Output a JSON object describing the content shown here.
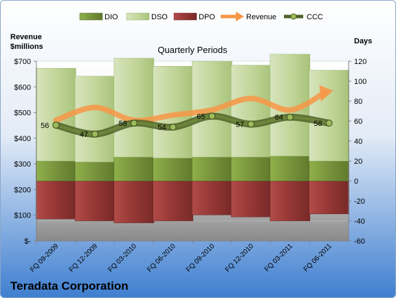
{
  "chart_data": {
    "type": "bar",
    "title": "Quarterly Periods",
    "company": "Teradata Corporation",
    "y_left_label_line1": "Revenue",
    "y_left_label_line2": "$millions",
    "y_right_label": "Days",
    "y_left_ticks": [
      "$-",
      "$100",
      "$200",
      "$300",
      "$400",
      "$500",
      "$600",
      "$700"
    ],
    "y_right_ticks": [
      "-60",
      "-40",
      "-20",
      "0",
      "20",
      "40",
      "60",
      "80",
      "100",
      "120"
    ],
    "ylim_left": [
      0,
      700
    ],
    "ylim_right": [
      -60,
      120
    ],
    "categories": [
      "FQ 09-2009",
      "FQ 12-2009",
      "FQ 03-2010",
      "FQ 06-2010",
      "FQ 09-2010",
      "FQ 12-2010",
      "FQ 03-2011",
      "FQ 06-2011"
    ],
    "legend": [
      "DIO",
      "DSO",
      "DPO",
      "Revenue",
      "CCC"
    ],
    "series": [
      {
        "name": "DIO",
        "axis": "right",
        "values": [
          20,
          19,
          24,
          23,
          24,
          24,
          25,
          20
        ]
      },
      {
        "name": "DSO",
        "axis": "right",
        "values": [
          93,
          86,
          99,
          92,
          96,
          92,
          102,
          91
        ]
      },
      {
        "name": "DPO",
        "axis": "right",
        "values": [
          -38,
          -40,
          -42,
          -40,
          -34,
          -36,
          -40,
          -33
        ]
      },
      {
        "name": "Revenue",
        "axis": "left",
        "values": [
          470,
          520,
          470,
          490,
          510,
          555,
          510,
          580
        ]
      },
      {
        "name": "CCC",
        "axis": "right",
        "values": [
          56,
          47,
          58,
          54,
          65,
          57,
          64,
          58
        ],
        "labels": [
          "56",
          "47",
          "58",
          "54",
          "65",
          "57",
          "64",
          "58"
        ]
      }
    ],
    "colors": {
      "DIO": "#77933c",
      "DSO": "#c3d69b",
      "DPO": "#953735",
      "Revenue": "#f79646",
      "CCC": "#4f6228"
    }
  }
}
